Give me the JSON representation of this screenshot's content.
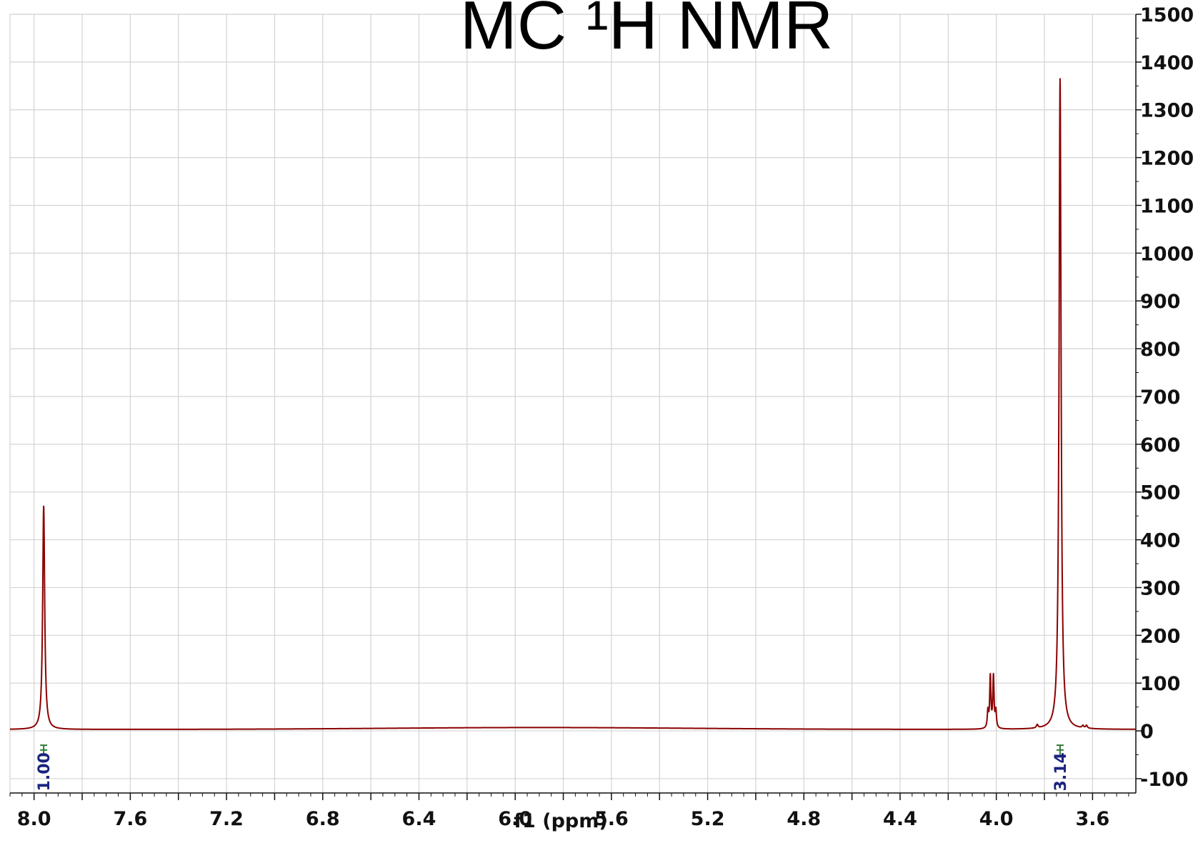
{
  "chart_data": {
    "type": "line",
    "title": "MC ¹H NMR",
    "xlabel": "f1 (ppm)",
    "ylabel": "",
    "xlim": [
      8.1,
      3.42
    ],
    "ylim": [
      -130,
      1500
    ],
    "x_reversed": true,
    "y_axis_side": "right",
    "grid": true,
    "x_ticks": [
      {
        "value": 8.0,
        "label": "8.0"
      },
      {
        "value": 7.6,
        "label": "7.6"
      },
      {
        "value": 7.2,
        "label": "7.2"
      },
      {
        "value": 6.8,
        "label": "6.8"
      },
      {
        "value": 6.4,
        "label": "6.4"
      },
      {
        "value": 6.0,
        "label": "6.0"
      },
      {
        "value": 5.6,
        "label": "5.6"
      },
      {
        "value": 5.2,
        "label": "5.2"
      },
      {
        "value": 4.8,
        "label": "4.8"
      },
      {
        "value": 4.4,
        "label": "4.4"
      },
      {
        "value": 4.0,
        "label": "4.0"
      },
      {
        "value": 3.6,
        "label": "3.6"
      }
    ],
    "y_ticks": [
      {
        "value": 1500,
        "label": "1500"
      },
      {
        "value": 1400,
        "label": "1400"
      },
      {
        "value": 1300,
        "label": "1300"
      },
      {
        "value": 1200,
        "label": "1200"
      },
      {
        "value": 1100,
        "label": "1100"
      },
      {
        "value": 1000,
        "label": "1000"
      },
      {
        "value": 900,
        "label": "900"
      },
      {
        "value": 800,
        "label": "800"
      },
      {
        "value": 700,
        "label": "700"
      },
      {
        "value": 600,
        "label": "600"
      },
      {
        "value": 500,
        "label": "500"
      },
      {
        "value": 400,
        "label": "400"
      },
      {
        "value": 300,
        "label": "300"
      },
      {
        "value": 200,
        "label": "200"
      },
      {
        "value": 100,
        "label": "100"
      },
      {
        "value": 0,
        "label": "0"
      },
      {
        "value": -100,
        "label": "-100"
      }
    ],
    "series": [
      {
        "color": "#8b0000",
        "baseline": 3,
        "broad_hump": {
          "center": 5.9,
          "width": 0.9,
          "height": 4
        },
        "peaks": [
          {
            "x": 7.96,
            "y": 468,
            "width": 0.005
          },
          {
            "x": 4.035,
            "y": 35,
            "width": 0.003
          },
          {
            "x": 4.025,
            "y": 108,
            "width": 0.003
          },
          {
            "x": 4.012,
            "y": 108,
            "width": 0.003
          },
          {
            "x": 4.002,
            "y": 35,
            "width": 0.003
          },
          {
            "x": 3.83,
            "y": 7,
            "width": 0.004
          },
          {
            "x": 3.735,
            "y": 1362,
            "width": 0.005
          },
          {
            "x": 3.64,
            "y": 5,
            "width": 0.004
          },
          {
            "x": 3.625,
            "y": 6,
            "width": 0.004
          }
        ]
      }
    ],
    "integrals": [
      {
        "x": 7.96,
        "label": "1.00",
        "label_color": "#1a237e",
        "mark_color": "#2e7d32"
      },
      {
        "x": 3.735,
        "label": "3.14",
        "label_color": "#1a237e",
        "mark_color": "#2e7d32"
      }
    ]
  }
}
